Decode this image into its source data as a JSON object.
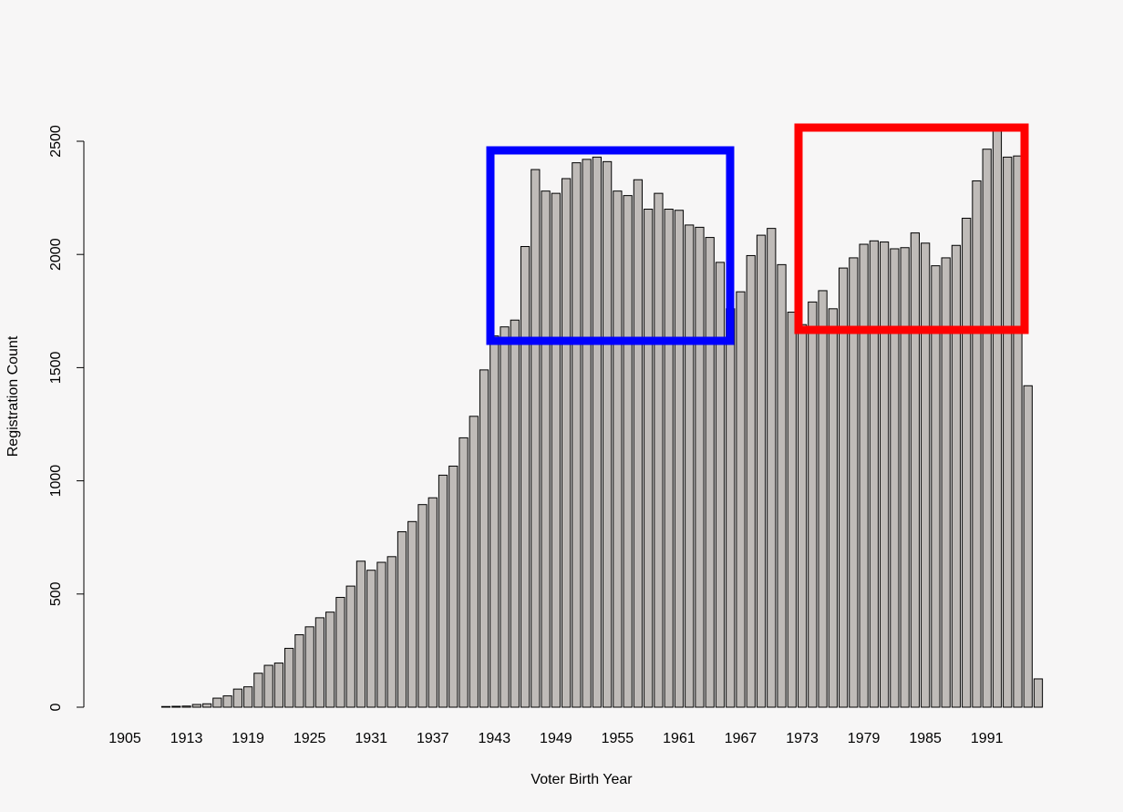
{
  "chart_data": {
    "type": "bar",
    "xlabel": "Voter Birth Year",
    "ylabel": "Registration Count",
    "categories": [
      "1905",
      null,
      null,
      null,
      null,
      null,
      "1913",
      null,
      null,
      null,
      null,
      null,
      "1919",
      null,
      null,
      null,
      null,
      null,
      "1925",
      null,
      null,
      null,
      null,
      null,
      "1931",
      null,
      null,
      null,
      null,
      null,
      "1937",
      null,
      null,
      null,
      null,
      null,
      "1943",
      null,
      null,
      null,
      null,
      null,
      "1949",
      null,
      null,
      null,
      null,
      null,
      "1955",
      null,
      null,
      null,
      null,
      null,
      "1961",
      null,
      null,
      null,
      null,
      null,
      "1967",
      null,
      null,
      null,
      null,
      null,
      "1973",
      null,
      null,
      null,
      null,
      null,
      "1979",
      null,
      null,
      null,
      null,
      null,
      "1985",
      null,
      null,
      null,
      null,
      null,
      "1991",
      null,
      null,
      null,
      null,
      null
    ],
    "values": [
      0,
      0,
      0,
      0,
      3,
      4,
      5,
      12,
      15,
      40,
      50,
      80,
      90,
      150,
      185,
      195,
      260,
      320,
      355,
      395,
      420,
      485,
      535,
      645,
      605,
      640,
      665,
      775,
      820,
      895,
      925,
      1025,
      1065,
      1190,
      1285,
      1490,
      1640,
      1680,
      1710,
      2035,
      2375,
      2280,
      2270,
      2335,
      2405,
      2420,
      2430,
      2410,
      2280,
      2260,
      2330,
      2200,
      2270,
      2200,
      2195,
      2130,
      2120,
      2075,
      1965,
      1760,
      1835,
      1995,
      2085,
      2115,
      1955,
      1745,
      1690,
      1790,
      1840,
      1760,
      1940,
      1985,
      2045,
      2060,
      2055,
      2025,
      2030,
      2095,
      2050,
      1950,
      1985,
      2040,
      2160,
      2325,
      2465,
      2550,
      2430,
      2435,
      1420,
      125
    ],
    "color": "#bfbbb8",
    "ylim": [
      0,
      2500
    ],
    "yticks": [
      0,
      500,
      1000,
      1500,
      2000,
      2500
    ]
  }
}
